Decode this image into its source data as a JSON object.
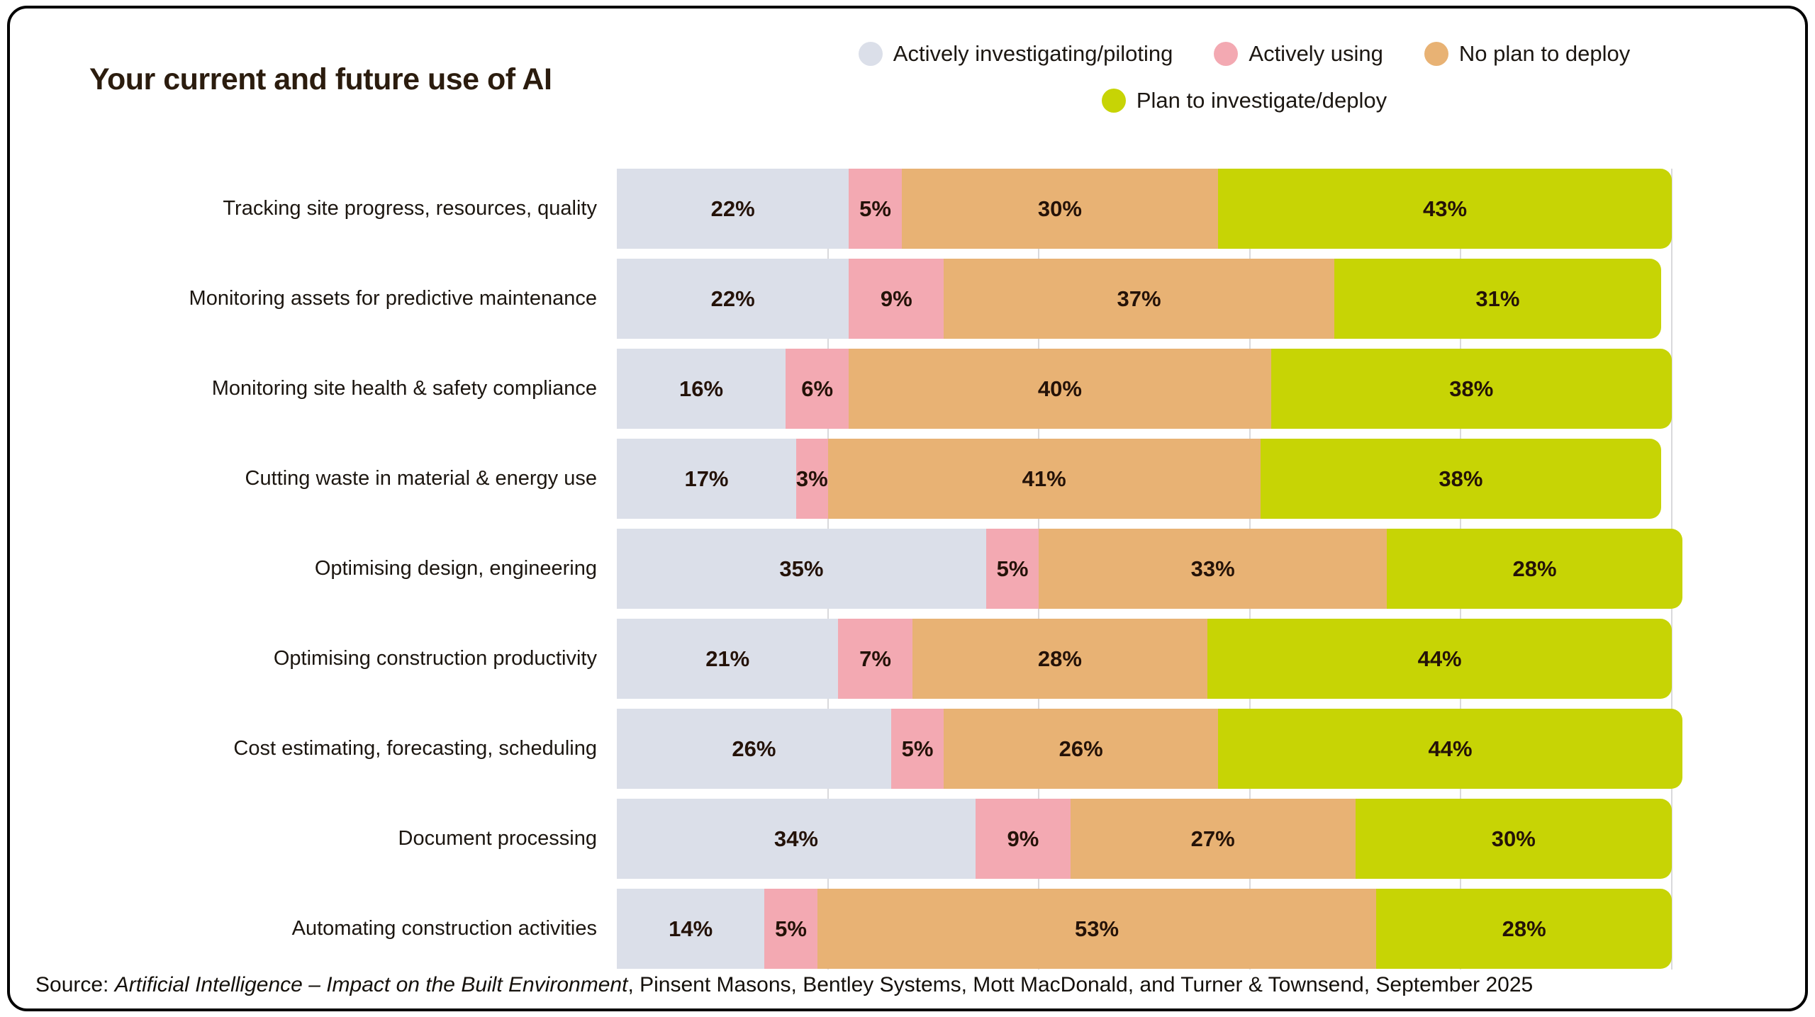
{
  "title": "Your current and future use of AI",
  "legend": [
    {
      "label": "Actively investigating/piloting",
      "color": "#dbdfe9"
    },
    {
      "label": "Actively using",
      "color": "#f3a9b2"
    },
    {
      "label": "No plan to deploy",
      "color": "#e8b274"
    },
    {
      "label": "Plan to investigate/deploy",
      "color": "#c7d405"
    }
  ],
  "source": {
    "prefix": "Source: ",
    "study_title": "Artificial Intelligence – Impact on the Built Environment",
    "suffix": ", Pinsent Masons, Bentley Systems, Mott MacDonald, and Turner & Townsend, September 2025"
  },
  "chart_data": {
    "type": "bar",
    "orientation": "horizontal",
    "stacked": true,
    "unit": "%",
    "title": "Your current and future use of AI",
    "xlabel": "",
    "ylabel": "",
    "xlim": [
      0,
      100
    ],
    "grid": true,
    "gridlines_percent": [
      20,
      40,
      60,
      80,
      100
    ],
    "legend_position": "top-right",
    "value_label_format": "{v}%",
    "categories": [
      "Tracking site progress, resources, quality",
      "Monitoring assets for predictive maintenance",
      "Monitoring site health & safety compliance",
      "Cutting waste in material & energy use",
      "Optimising design, engineering",
      "Optimising construction productivity",
      "Cost estimating, forecasting, scheduling",
      "Document processing",
      "Automating construction activities"
    ],
    "series": [
      {
        "name": "Actively investigating/piloting",
        "color": "#dbdfe9",
        "values": [
          22,
          22,
          16,
          17,
          35,
          21,
          26,
          34,
          14
        ]
      },
      {
        "name": "Actively using",
        "color": "#f3a9b2",
        "values": [
          5,
          9,
          6,
          3,
          5,
          7,
          5,
          9,
          5
        ]
      },
      {
        "name": "No plan to deploy",
        "color": "#e8b274",
        "values": [
          30,
          37,
          40,
          41,
          33,
          28,
          26,
          27,
          53
        ]
      },
      {
        "name": "Plan to investigate/deploy",
        "color": "#c7d405",
        "values": [
          43,
          31,
          38,
          38,
          28,
          44,
          44,
          30,
          28
        ]
      }
    ]
  }
}
